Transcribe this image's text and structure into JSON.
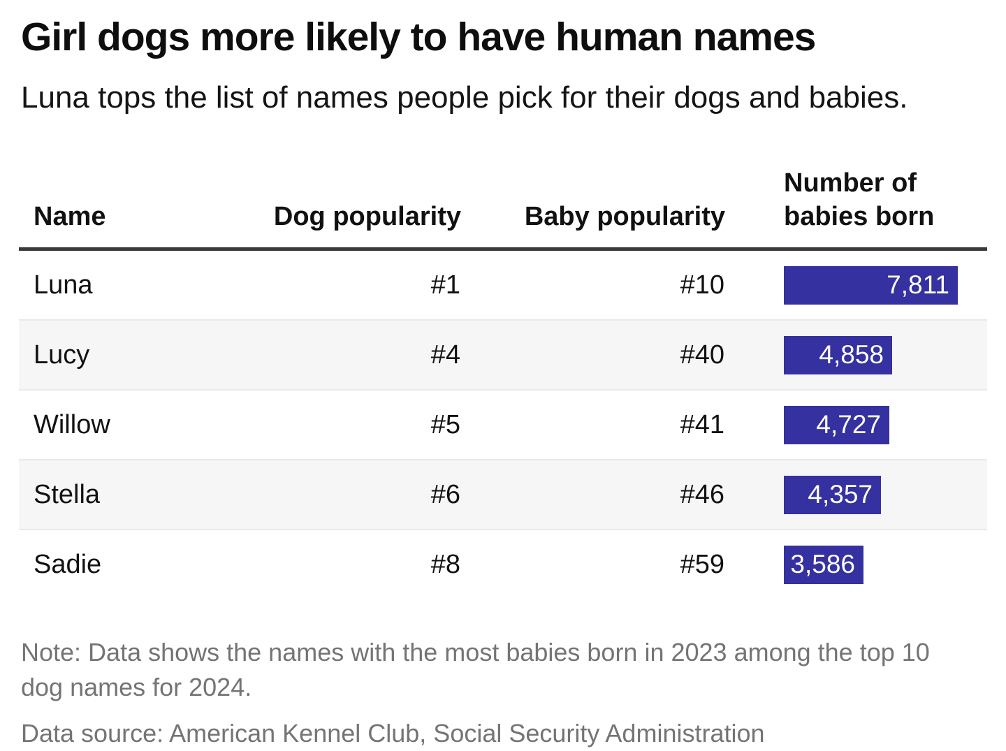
{
  "title": "Girl dogs more likely to have human names",
  "subtitle": "Luna tops the list of names people pick for their dogs and babies.",
  "chart_data": {
    "type": "table",
    "title": "Girl dogs more likely to have human names",
    "subtitle": "Luna tops the list of names people pick for their dogs and babies.",
    "columns": [
      "Name",
      "Dog popularity",
      "Baby popularity",
      "Number of babies born"
    ],
    "rows": [
      {
        "name": "Luna",
        "dog_popularity": "#1",
        "baby_popularity": "#10",
        "babies_born": 7811,
        "babies_born_label": "7,811"
      },
      {
        "name": "Lucy",
        "dog_popularity": "#4",
        "baby_popularity": "#40",
        "babies_born": 4858,
        "babies_born_label": "4,858"
      },
      {
        "name": "Willow",
        "dog_popularity": "#5",
        "baby_popularity": "#41",
        "babies_born": 4727,
        "babies_born_label": "4,727"
      },
      {
        "name": "Stella",
        "dog_popularity": "#6",
        "baby_popularity": "#46",
        "babies_born": 4357,
        "babies_born_label": "4,357"
      },
      {
        "name": "Sadie",
        "dog_popularity": "#8",
        "baby_popularity": "#59",
        "babies_born": 3586,
        "babies_born_label": "3,586"
      }
    ],
    "bar_column": {
      "measure": "babies_born",
      "max_value": 7811,
      "orientation": "horizontal"
    },
    "zebra_striping": true
  },
  "notes": {
    "note": "Note: Data shows the names with the most babies born in 2023 among the top 10 dog names for 2024.",
    "source": "Data source: American Kennel Club, Social Security Administration"
  },
  "colors": {
    "bar": "#3531a1",
    "bar_text": "#ffffff",
    "header_rule": "#3a3a3a",
    "zebra_row": "#f6f6f6",
    "row_divider": "#e9e9e9",
    "note_text": "#747474",
    "title_text": "#0e0e0e"
  }
}
